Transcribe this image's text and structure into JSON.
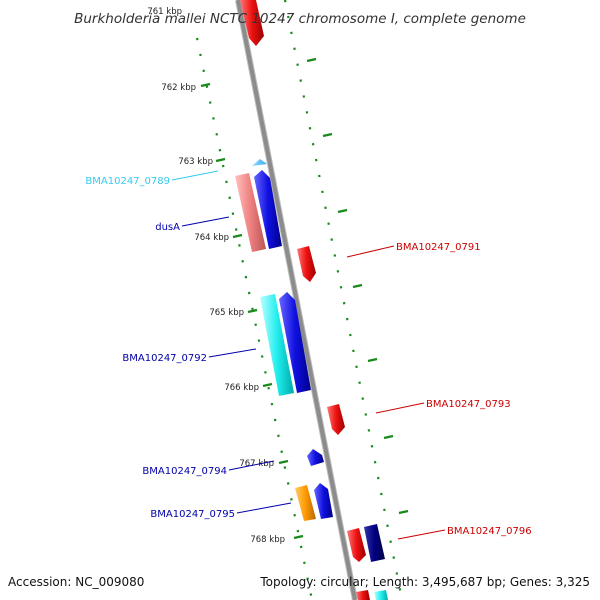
{
  "title": "Burkholderia mallei NCTC 10247 chromosome I, complete genome",
  "footer": {
    "accession": "Accession: NC_009080",
    "summary": "Topology: circular; Length: 3,495,687 bp; Genes: 3,325"
  },
  "ticks": [
    "761 kbp",
    "762 kbp",
    "763 kbp",
    "764 kbp",
    "765 kbp",
    "766 kbp",
    "767 kbp",
    "768 kbp"
  ],
  "gene_labels": [
    {
      "text": "BMA10247_0789",
      "color": "#33ccee"
    },
    {
      "text": "dusA",
      "color": "#0000aa"
    },
    {
      "text": "BMA10247_0791",
      "color": "#cc0000"
    },
    {
      "text": "BMA10247_0792",
      "color": "#0000aa"
    },
    {
      "text": "BMA10247_0793",
      "color": "#cc0000"
    },
    {
      "text": "BMA10247_0794",
      "color": "#0000aa"
    },
    {
      "text": "BMA10247_0795",
      "color": "#0000aa"
    },
    {
      "text": "BMA10247_0796",
      "color": "#cc0000"
    }
  ],
  "colors": {
    "backbone": "#8c8c8c",
    "dots": "#1a8a1a",
    "forward": "#1010e0",
    "reverse": "#ee1111",
    "cyan": "#22eeee",
    "pink": "#ee8080",
    "orange": "#ff9900",
    "navy": "#000080"
  }
}
